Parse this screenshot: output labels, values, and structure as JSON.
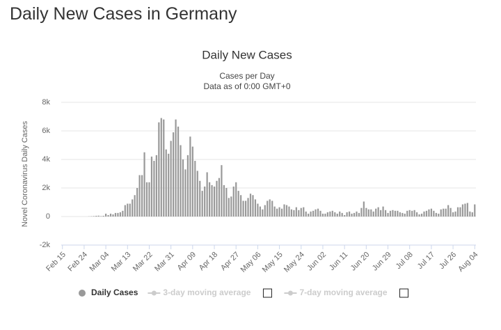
{
  "header": {
    "title": "Daily New Cases in Germany"
  },
  "chart_data": {
    "type": "bar",
    "title": "Daily New Cases",
    "subtitle": "Cases per Day",
    "note": "Data as of 0:00 GMT+0",
    "y_label": "Novel Coronavirus Daily Cases",
    "categories": [
      "Feb 15",
      null,
      null,
      null,
      null,
      null,
      null,
      null,
      null,
      "Feb 24",
      null,
      null,
      null,
      null,
      null,
      null,
      null,
      null,
      "Mar 04",
      null,
      null,
      null,
      null,
      null,
      null,
      null,
      null,
      "Mar 13",
      null,
      null,
      null,
      null,
      null,
      null,
      null,
      null,
      "Mar 22",
      null,
      null,
      null,
      null,
      null,
      null,
      null,
      null,
      "Mar 31",
      null,
      null,
      null,
      null,
      null,
      null,
      null,
      null,
      "Apr 09",
      null,
      null,
      null,
      null,
      null,
      null,
      null,
      null,
      "Apr 18",
      null,
      null,
      null,
      null,
      null,
      null,
      null,
      null,
      "Apr 27",
      null,
      null,
      null,
      null,
      null,
      null,
      null,
      null,
      "May 06",
      null,
      null,
      null,
      null,
      null,
      null,
      null,
      null,
      "May 15",
      null,
      null,
      null,
      null,
      null,
      null,
      null,
      null,
      "May 24",
      null,
      null,
      null,
      null,
      null,
      null,
      null,
      null,
      "Jun 02",
      null,
      null,
      null,
      null,
      null,
      null,
      null,
      null,
      "Jun 11",
      null,
      null,
      null,
      null,
      null,
      null,
      null,
      null,
      "Jun 20",
      null,
      null,
      null,
      null,
      null,
      null,
      null,
      null,
      "Jun 29",
      null,
      null,
      null,
      null,
      null,
      null,
      null,
      null,
      "Jul 08",
      null,
      null,
      null,
      null,
      null,
      null,
      null,
      null,
      "Jul 17",
      null,
      null,
      null,
      null,
      null,
      null,
      null,
      null,
      "Jul 26",
      null,
      null,
      null,
      null,
      null,
      null,
      null,
      null,
      "Aug 04"
    ],
    "series": [
      {
        "name": "Daily Cases",
        "color": "#999999",
        "visible": true,
        "values": [
          0,
          0,
          0,
          0,
          0,
          0,
          0,
          0,
          0,
          0,
          0,
          10,
          20,
          30,
          50,
          60,
          30,
          50,
          200,
          100,
          200,
          150,
          250,
          250,
          300,
          400,
          800,
          900,
          900,
          1200,
          1500,
          2000,
          2900,
          2900,
          4500,
          2400,
          2400,
          4200,
          3900,
          4300,
          6600,
          6900,
          6800,
          4700,
          4400,
          5300,
          5900,
          6800,
          6300,
          5000,
          4000,
          3300,
          4300,
          5600,
          4900,
          3900,
          3200,
          2500,
          1800,
          2100,
          3100,
          2400,
          2200,
          2100,
          2500,
          2700,
          3600,
          2200,
          2000,
          1300,
          1400,
          2100,
          2400,
          1800,
          1500,
          1100,
          1100,
          1300,
          1600,
          1500,
          1200,
          900,
          700,
          500,
          800,
          1100,
          1200,
          1100,
          700,
          550,
          650,
          550,
          850,
          800,
          700,
          500,
          450,
          650,
          450,
          600,
          650,
          350,
          200,
          350,
          400,
          500,
          550,
          400,
          200,
          200,
          300,
          350,
          400,
          300,
          200,
          350,
          250,
          100,
          300,
          350,
          200,
          250,
          350,
          250,
          600,
          1050,
          600,
          500,
          500,
          350,
          550,
          650,
          450,
          700,
          450,
          250,
          400,
          450,
          400,
          400,
          300,
          250,
          200,
          400,
          450,
          400,
          450,
          300,
          150,
          200,
          350,
          400,
          500,
          550,
          400,
          250,
          200,
          500,
          550,
          550,
          800,
          600,
          300,
          350,
          650,
          650,
          850,
          900,
          950,
          350,
          300,
          850
        ]
      },
      {
        "name": "3-day moving average",
        "color": "#cccccc",
        "visible": false
      },
      {
        "name": "7-day moving average",
        "color": "#cccccc",
        "visible": false
      }
    ],
    "ylim": [
      -2000,
      8000
    ],
    "yticks": [
      {
        "value": -2000,
        "label": "-2k"
      },
      0,
      {
        "value": 2000,
        "label": "2k"
      },
      {
        "value": 4000,
        "label": "4k"
      },
      {
        "value": 6000,
        "label": "6k"
      },
      {
        "value": 8000,
        "label": "8k"
      }
    ],
    "grid": true
  }
}
